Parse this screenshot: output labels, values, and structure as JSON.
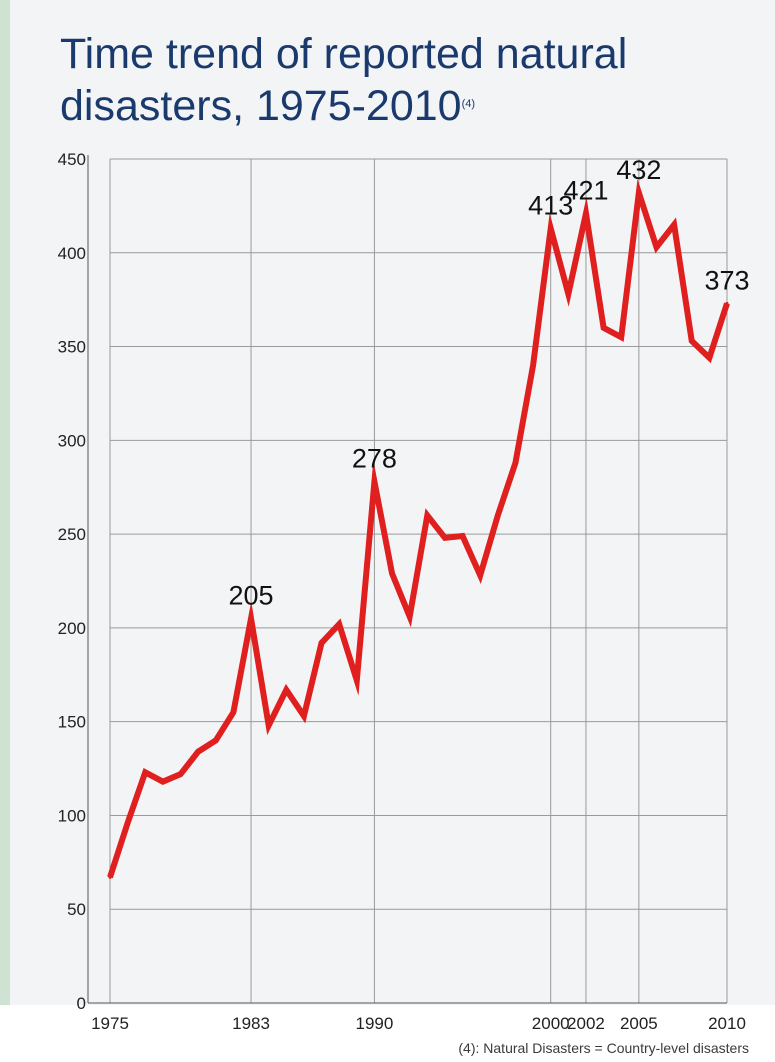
{
  "title": "Time trend of reported natural disasters, 1975-2010",
  "title_superscript": "(4)",
  "footnote": "(4): Natural Disasters = Country-level disasters",
  "colors": {
    "line": "#e01f1f",
    "title": "#1a3a6e",
    "grid": "#9a9a9a",
    "axis": "#555555",
    "text": "#222222"
  },
  "chart_data": {
    "type": "line",
    "x": [
      1975,
      1976,
      1977,
      1978,
      1979,
      1980,
      1981,
      1982,
      1983,
      1984,
      1985,
      1986,
      1987,
      1988,
      1989,
      1990,
      1991,
      1992,
      1993,
      1994,
      1995,
      1996,
      1997,
      1998,
      1999,
      2000,
      2001,
      2002,
      2003,
      2004,
      2005,
      2006,
      2007,
      2008,
      2009,
      2010
    ],
    "series": [
      {
        "values": [
          67,
          96,
          123,
          118,
          122,
          134,
          140,
          155,
          205,
          148,
          167,
          153,
          192,
          202,
          172,
          278,
          229,
          206,
          260,
          248,
          249,
          228,
          260,
          288,
          340,
          413,
          378,
          421,
          360,
          355,
          432,
          403,
          415,
          353,
          344,
          373
        ]
      }
    ],
    "xticks": [
      1975,
      1983,
      1990,
      2000,
      2002,
      2005,
      2010
    ],
    "yticks": [
      0,
      50,
      100,
      150,
      200,
      250,
      300,
      350,
      400,
      450
    ],
    "xlim": [
      1975,
      2010
    ],
    "ylim": [
      0,
      450
    ],
    "xgrid": true,
    "ygrid": true,
    "data_labels": [
      {
        "x": 1983,
        "text": "205"
      },
      {
        "x": 1990,
        "text": "278"
      },
      {
        "x": 2000,
        "text": "413"
      },
      {
        "x": 2002,
        "text": "421"
      },
      {
        "x": 2005,
        "text": "432"
      },
      {
        "x": 2010,
        "text": "373"
      }
    ]
  }
}
